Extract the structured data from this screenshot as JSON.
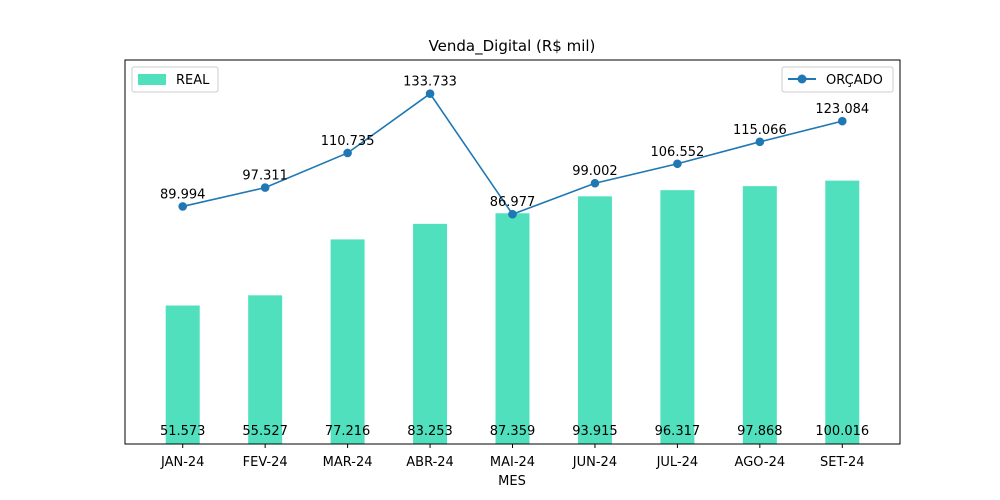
{
  "chart_data": {
    "type": "bar+line",
    "title": "Venda_Digital (R$ mil)",
    "xlabel": "MES",
    "ylabel": "",
    "categories": [
      "JAN-24",
      "FEV-24",
      "MAR-24",
      "ABR-24",
      "MAI-24",
      "JUN-24",
      "JUL-24",
      "AGO-24",
      "SET-24"
    ],
    "series": [
      {
        "name": "REAL",
        "type": "bar",
        "color": "#50e0bd",
        "values": [
          51.573,
          55.527,
          77.216,
          83.253,
          87.359,
          93.915,
          96.317,
          97.868,
          100.016
        ],
        "labels": [
          "51.573",
          "55.527",
          "77.216",
          "83.253",
          "87.359",
          "93.915",
          "96.317",
          "97.868",
          "100.016"
        ]
      },
      {
        "name": "ORÇADO",
        "type": "line",
        "color": "#1f77b4",
        "marker": "circle",
        "values": [
          89.994,
          97.311,
          110.735,
          133.733,
          86.977,
          99.002,
          106.552,
          115.066,
          123.084
        ],
        "labels": [
          "89.994",
          "97.311",
          "110.735",
          "133.733",
          "86.977",
          "99.002",
          "106.552",
          "115.066",
          "123.084"
        ]
      }
    ],
    "yticks_visible": false,
    "grid": false,
    "legends": {
      "bar": "top-left",
      "line": "top-right"
    }
  }
}
